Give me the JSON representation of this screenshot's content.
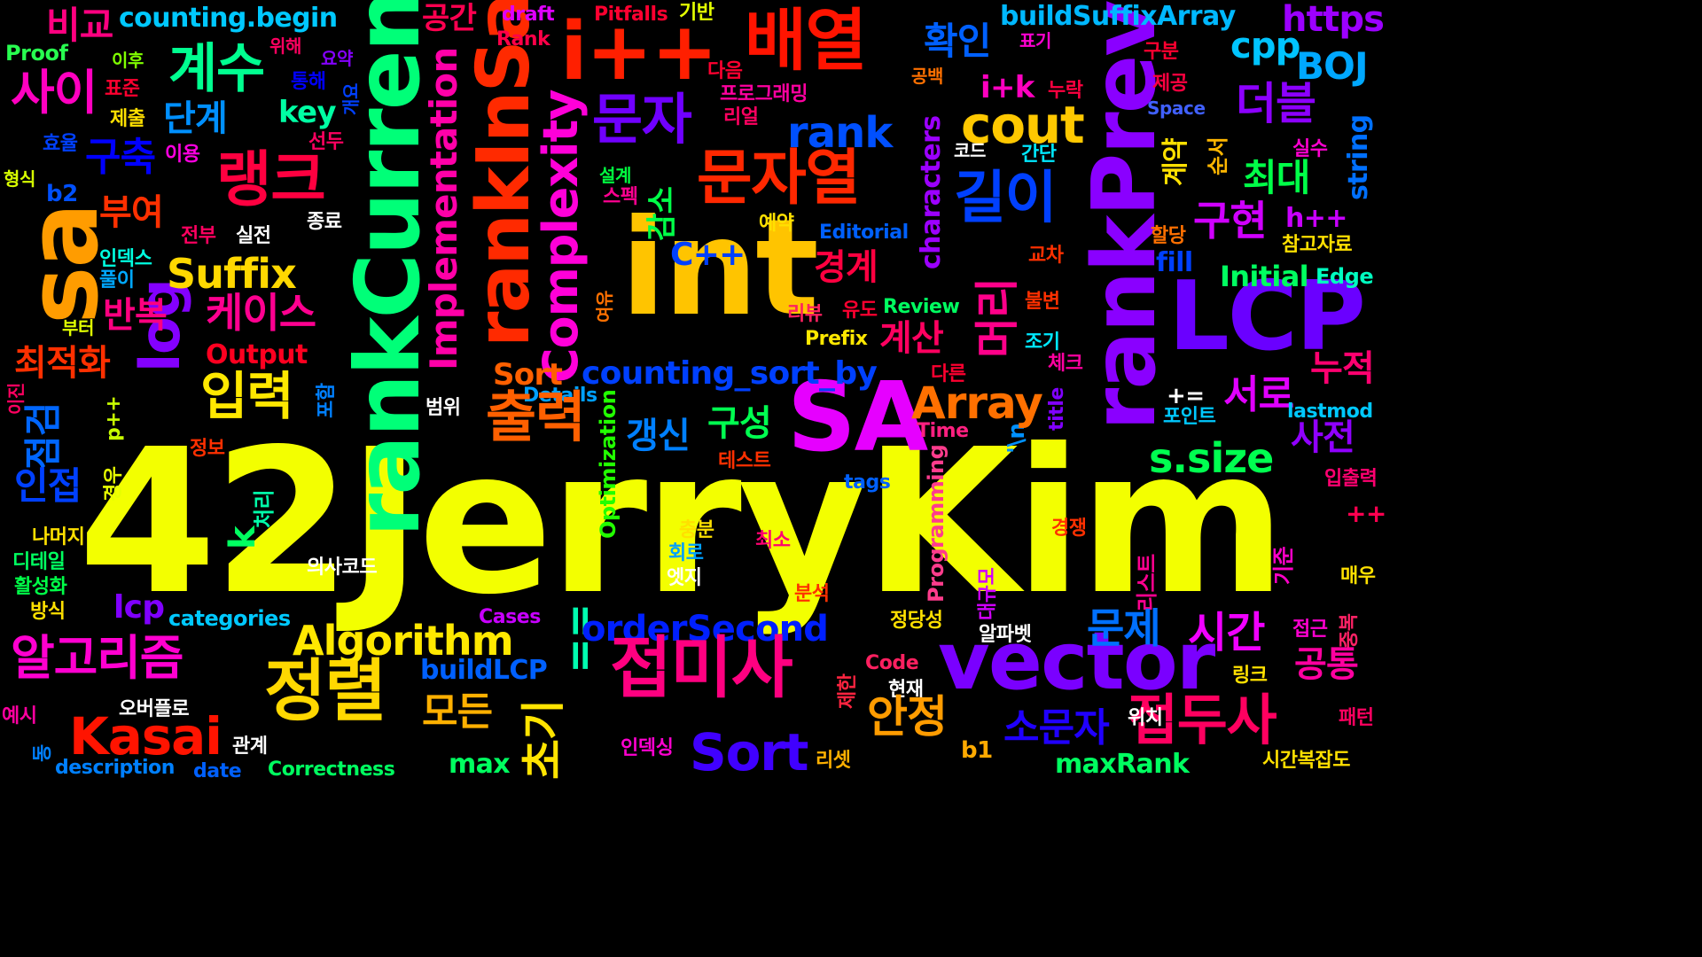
{
  "words": {
    "jerrykim": "42JerryKim",
    "int": "int",
    "sa_upper": "SA",
    "lcp": "LCP",
    "vector": "vector",
    "rankcurrent": "rankCurrent",
    "rankprev": "rankPrev",
    "rankinsa": "rankInSa",
    "iplus": "i++",
    "sa_lower": "sa",
    "baeyeol": "배열",
    "munjayeol": "문자열",
    "jeopmisa": "접미사",
    "jeongryeol": "정렬",
    "algorithm_ko": "알고리즘",
    "algorithm": "Algorithm",
    "kasai": "Kasai",
    "sort": "Sort",
    "jeopdusa": "접두사",
    "suffix": "Suffix",
    "array": "Array",
    "complexity": "Complexity",
    "implementation": "Implementation",
    "counting_sort_by": "counting_sort_by",
    "ordersecond": "orderSecond",
    "buildsuffixarray": "buildSuffixArray",
    "counting_begin": "counting.begin",
    "cout": "cout",
    "rank": "rank",
    "s_size": "s.size",
    "log": "log",
    "lcp_lower": "lcp",
    "maxrank": "maxRank",
    "buildlcp": "buildLCP",
    "bigyo": "비교",
    "gyesu": "계수",
    "sai": "사이",
    "rangkeu": "랭크",
    "dangye": "단계",
    "guchuk": "구축",
    "buyeo": "부여",
    "banbok": "반복",
    "choejeokhwa": "최적화",
    "jeomgeom": "점검",
    "injeop": "인접",
    "ipryeok": "입력",
    "chulryeok": "출력",
    "keiseu": "케이스",
    "munja": "문자",
    "gilyi": "길이",
    "meori": "머리",
    "gyeonggye": "경계",
    "gyesan": "계산",
    "gamso": "감소",
    "gusung": "구성",
    "gaengsin": "갱신",
    "anjeong": "안정",
    "sojmunja": "소문자",
    "modeun": "모든",
    "chogi": "초기",
    "sigan": "시간",
    "munje": "문제",
    "gongtong": "공통",
    "nujeok": "누적",
    "saseon": "사전",
    "seoro": "서로",
    "guhyeon": "구현",
    "choedae": "최대",
    "deobeul": "더블",
    "hwagin": "확인",
    "gonggan": "공간",
    "gyeyak": "계약",
    "https": "https",
    "boj": "BOJ",
    "cpp": "cpp",
    "string": "string",
    "ik": "i+k",
    "key": "key",
    "eqeq": "==",
    "k": "k",
    "max": "max",
    "b1": "b1",
    "b2": "b2",
    "cplusplus": "C++",
    "hplus": "h++",
    "plusplus": "++",
    "pluseq": "+=",
    "pplus": "p++",
    "fill": "fill",
    "initial": "Initial",
    "edge": "Edge",
    "review": "Review",
    "prefix": "Prefix",
    "output": "Output",
    "details": "Details",
    "time": "Time",
    "n_esc": "'\\n",
    "title": "title",
    "lastmod": "lastmod",
    "tags": "tags",
    "editorial": "Editorial",
    "characters": "characters",
    "optimization": "Optimization",
    "programming": "Programming",
    "cases": "Cases",
    "code": "Code",
    "correctness": "Correctness",
    "description": "description",
    "date": "date",
    "categories": "categories",
    "proof": "Proof",
    "draft": "draft",
    "rank_cap": "Rank",
    "pitfalls": "Pitfalls",
    "space": "Space",
    "gibon": "기반",
    "ihu": "이후",
    "wihae": "위해",
    "yoyak": "요약",
    "pyogi": "표기",
    "gubun": "구분",
    "jegong": "제공",
    "daeum": "다음",
    "tonghae": "통해",
    "pyojun": "표준",
    "programming_ko": "프로그래밍",
    "riyeol": "리얼",
    "jechul": "제출",
    "gongbaek": "공백",
    "nurak": "누락",
    "hyoyul": "효율",
    "seondu": "선두",
    "iyong": "이용",
    "code_ko": "코드",
    "gandan": "간단",
    "silsu": "실수",
    "sunseo": "순서",
    "hyeongsik": "형식",
    "seolgye": "설계",
    "seupek": "스펙",
    "jeonbu": "전부",
    "siljeon": "실전",
    "jongryo": "종료",
    "yeyak": "예약",
    "haldang": "할당",
    "chamgojaryo": "참고자료",
    "index": "인덱스",
    "puri": "풀이",
    "gyocha": "교차",
    "yudo": "유도",
    "ribyu": "리뷰",
    "bulbyeon": "불변",
    "buteo": "부터",
    "jogi": "조기",
    "check": "체크",
    "dareun": "다른",
    "pohamn": "포함",
    "ijin": "이진",
    "beomwi": "범위",
    "point": "포인트",
    "jeongbo": "정보",
    "test": "테스트",
    "gyeongu": "경우",
    "cheori": "처리",
    "ipchulryeok": "입출력",
    "namoji": "나머지",
    "detail": "디테일",
    "hwalseonghwa": "활성화",
    "bangsik": "방식",
    "chungbun": "충분",
    "hoero": "회로",
    "edge_ko": "엣지",
    "choeso": "최소",
    "uisacode": "의사코드",
    "bunseok": "분석",
    "gyeongjaeng": "경쟁",
    "list": "리스트",
    "gijun": "기준",
    "daegyumo": "대규모",
    "maeu": "매우",
    "jeongdangseong": "정당성",
    "alphabet": "알파벳",
    "jeopgeun": "접근",
    "jungbok": "중복",
    "jehan": "제한",
    "hyeonjae": "현재",
    "link": "링크",
    "yesi": "예시",
    "obeopeullo": "오버플로",
    "gwangye": "관계",
    "wichi": "위치",
    "paeteon": "패턴",
    "indexing": "인덱싱",
    "reset": "리셋",
    "time_complexity": "시간복잡도",
    "dong": "동",
    "yeoyu": "여유",
    "gaeyo": "개요"
  },
  "colors": {
    "background": "#000000"
  }
}
